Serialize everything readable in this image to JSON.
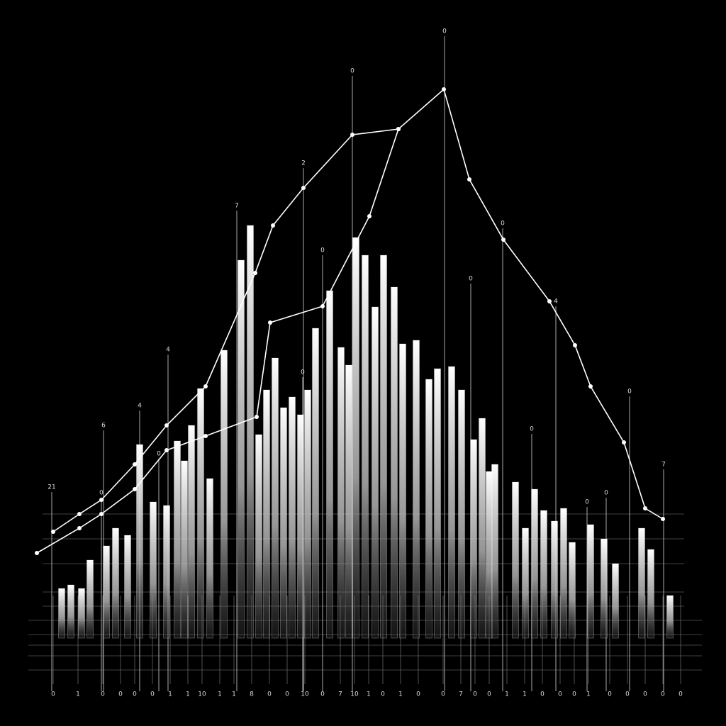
{
  "chart_data": {
    "type": "bar",
    "color": "#ffffff",
    "line_color": "#ffffff",
    "xlim": [
      0,
      102.4
    ],
    "ylim": [
      0,
      90
    ],
    "x": [
      8.7,
      10.0,
      11.5,
      12.7,
      15.0,
      16.3,
      18.0,
      19.7,
      21.6,
      23.5,
      25.0,
      26.0,
      27.0,
      28.3,
      29.6,
      31.6,
      34.0,
      35.3,
      36.5,
      37.6,
      38.8,
      40.0,
      41.2,
      42.4,
      43.4,
      44.5,
      46.5,
      48.1,
      49.2,
      50.2,
      51.5,
      52.9,
      54.1,
      55.6,
      56.8,
      58.7,
      60.5,
      61.7,
      63.7,
      65.1,
      66.8,
      68.0,
      69.0,
      69.8,
      72.7,
      74.1,
      75.4,
      76.7,
      78.2,
      79.5,
      80.7,
      83.3,
      85.2,
      86.8,
      90.5,
      91.8,
      94.5
    ],
    "values": [
      7.0,
      7.5,
      7.0,
      11.0,
      13.0,
      15.5,
      14.5,
      27.3,
      19.2,
      18.7,
      27.8,
      25.0,
      30.0,
      35.2,
      22.5,
      40.6,
      53.3,
      58.2,
      28.7,
      35.0,
      39.5,
      32.5,
      34.0,
      31.5,
      35.0,
      43.7,
      49.0,
      41.0,
      38.5,
      56.5,
      54.0,
      46.7,
      54.0,
      49.5,
      41.5,
      42.0,
      36.5,
      38.0,
      38.3,
      35.0,
      28.0,
      31.0,
      23.5,
      24.5,
      22.0,
      15.5,
      21.0,
      18.0,
      16.5,
      18.3,
      13.5,
      16.0,
      14.0,
      10.5,
      15.5,
      12.5,
      6.0
    ],
    "lines": [
      {
        "x": [
          7.5,
          11.2,
          14.3,
          19.0,
          23.5,
          29.0,
          36.0,
          38.5,
          42.8,
          49.7,
          56.2,
          62.6,
          66.2,
          71.0,
          77.5,
          81.1,
          83.3,
          88.0,
          91.0,
          93.5
        ],
        "values": [
          15.0,
          17.5,
          19.5,
          24.5,
          30.0,
          35.5,
          51.5,
          58.2,
          63.5,
          71.0,
          71.8,
          77.4,
          64.7,
          56.2,
          47.5,
          41.3,
          35.5,
          27.6,
          18.3,
          16.8
        ]
      },
      {
        "x": [
          5.2,
          11.2,
          14.3,
          19.0,
          23.5,
          29.0,
          36.2,
          38.1,
          45.5,
          52.1,
          56.2
        ],
        "values": [
          12.0,
          15.5,
          17.5,
          21.0,
          26.5,
          28.5,
          31.2,
          44.5,
          46.8,
          59.5,
          71.8
        ]
      }
    ],
    "annotations": [
      {
        "text": "0",
        "x": 62.7,
        "y": 85.6
      },
      {
        "text": "0",
        "x": 49.7,
        "y": 80.0
      },
      {
        "text": "2",
        "x": 42.8,
        "y": 67.0
      },
      {
        "text": "7",
        "x": 33.4,
        "y": 61.0
      },
      {
        "text": "0",
        "x": 45.5,
        "y": 54.7
      },
      {
        "text": "0",
        "x": 70.9,
        "y": 58.5
      },
      {
        "text": "4",
        "x": 78.4,
        "y": 47.5
      },
      {
        "text": "4",
        "x": 23.7,
        "y": 40.7
      },
      {
        "text": "4",
        "x": 19.7,
        "y": 32.8
      },
      {
        "text": "6",
        "x": 14.6,
        "y": 30.0
      },
      {
        "text": "21",
        "x": 7.3,
        "y": 21.3
      },
      {
        "text": "0",
        "x": 14.3,
        "y": 20.5
      },
      {
        "text": "0",
        "x": 88.8,
        "y": 34.8
      },
      {
        "text": "7",
        "x": 93.6,
        "y": 24.5
      },
      {
        "text": "0",
        "x": 85.5,
        "y": 20.5
      },
      {
        "text": "0",
        "x": 82.8,
        "y": 19.2
      },
      {
        "text": "0",
        "x": 75.0,
        "y": 29.5
      },
      {
        "text": "0",
        "x": 66.4,
        "y": 50.7
      },
      {
        "text": "0",
        "x": 42.7,
        "y": 37.5
      },
      {
        "text": "0",
        "x": 22.4,
        "y": 26.0
      }
    ],
    "xticks": [
      {
        "value": 7.5,
        "label": "0"
      },
      {
        "value": 11.0,
        "label": "1"
      },
      {
        "value": 14.5,
        "label": "0"
      },
      {
        "value": 17.0,
        "label": "0"
      },
      {
        "value": 19.0,
        "label": "0"
      },
      {
        "value": 21.5,
        "label": "0"
      },
      {
        "value": 24.0,
        "label": "1"
      },
      {
        "value": 26.5,
        "label": "1"
      },
      {
        "value": 28.5,
        "label": "10"
      },
      {
        "value": 31.0,
        "label": "1"
      },
      {
        "value": 33.0,
        "label": "1"
      },
      {
        "value": 35.5,
        "label": "8"
      },
      {
        "value": 38.0,
        "label": "0"
      },
      {
        "value": 40.5,
        "label": "0"
      },
      {
        "value": 43.0,
        "label": "10"
      },
      {
        "value": 45.5,
        "label": "0"
      },
      {
        "value": 48.0,
        "label": "7"
      },
      {
        "value": 50.0,
        "label": "10"
      },
      {
        "value": 52.0,
        "label": "1"
      },
      {
        "value": 54.0,
        "label": "0"
      },
      {
        "value": 56.5,
        "label": "1"
      },
      {
        "value": 59.0,
        "label": "0"
      },
      {
        "value": 62.5,
        "label": "0"
      },
      {
        "value": 65.0,
        "label": "7"
      },
      {
        "value": 67.0,
        "label": "0"
      },
      {
        "value": 69.0,
        "label": "0"
      },
      {
        "value": 71.5,
        "label": "1"
      },
      {
        "value": 74.0,
        "label": "1"
      },
      {
        "value": 76.5,
        "label": "0"
      },
      {
        "value": 79.0,
        "label": "0"
      },
      {
        "value": 81.0,
        "label": "0"
      },
      {
        "value": 83.0,
        "label": "1"
      },
      {
        "value": 86.0,
        "label": "0"
      },
      {
        "value": 88.5,
        "label": "0"
      },
      {
        "value": 91.0,
        "label": "0"
      },
      {
        "value": 93.5,
        "label": "0"
      },
      {
        "value": 96.0,
        "label": "0"
      }
    ]
  }
}
